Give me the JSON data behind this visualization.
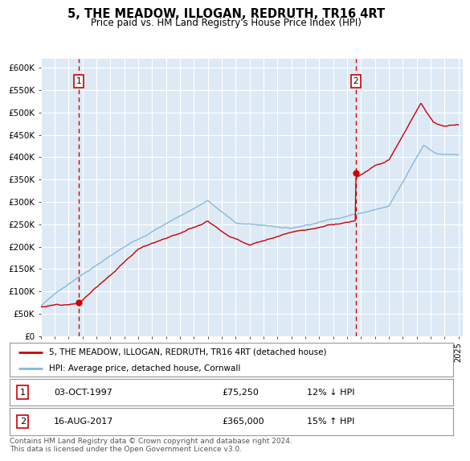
{
  "title": "5, THE MEADOW, ILLOGAN, REDRUTH, TR16 4RT",
  "subtitle": "Price paid vs. HM Land Registry's House Price Index (HPI)",
  "ylabel_ticks": [
    "£0",
    "£50K",
    "£100K",
    "£150K",
    "£200K",
    "£250K",
    "£300K",
    "£350K",
    "£400K",
    "£450K",
    "£500K",
    "£550K",
    "£600K"
  ],
  "ytick_values": [
    0,
    50000,
    100000,
    150000,
    200000,
    250000,
    300000,
    350000,
    400000,
    450000,
    500000,
    550000,
    600000
  ],
  "sale1_year": 1997.75,
  "sale1_price": 75250,
  "sale2_year": 2017.62,
  "sale2_price": 365000,
  "hpi_line_color": "#89b8d9",
  "price_line_color": "#cc0000",
  "vline_color": "#cc0000",
  "plot_bg_color": "#ddeaf5",
  "legend_line1": "5, THE MEADOW, ILLOGAN, REDRUTH, TR16 4RT (detached house)",
  "legend_line2": "HPI: Average price, detached house, Cornwall",
  "footnote": "Contains HM Land Registry data © Crown copyright and database right 2024.\nThis data is licensed under the Open Government Licence v3.0."
}
